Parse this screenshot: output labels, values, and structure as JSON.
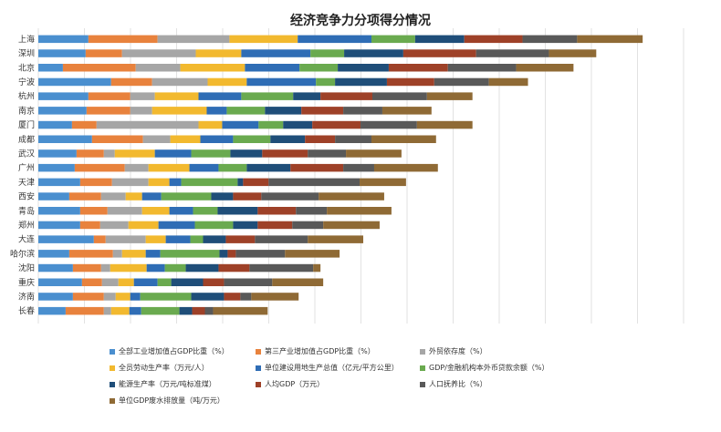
{
  "chart_data": {
    "type": "bar",
    "orientation": "horizontal",
    "stacked": true,
    "title": "经济竞争力分项得分情况",
    "grid": true,
    "legend_position": "bottom",
    "categories": [
      "上海",
      "深圳",
      "北京",
      "宁波",
      "杭州",
      "南京",
      "厦门",
      "成都",
      "武汉",
      "广州",
      "天津",
      "西安",
      "青岛",
      "郑州",
      "大连",
      "哈尔滨",
      "沈阳",
      "重庆",
      "济南",
      "长春"
    ],
    "series": [
      {
        "name": "全部工业增加值占GDP比重（%）",
        "color": "#4a8fcf",
        "values": [
          5.5,
          5.2,
          2.7,
          8.0,
          5.5,
          5.3,
          3.7,
          5.9,
          4.2,
          4.0,
          4.6,
          3.4,
          4.6,
          4.6,
          6.1,
          3.4,
          3.8,
          4.8,
          3.8,
          3.0
        ]
      },
      {
        "name": "第三产业增加值占GDP比重（%）",
        "color": "#e8823d",
        "values": [
          7.6,
          4.0,
          8.0,
          4.5,
          4.6,
          4.8,
          2.7,
          5.6,
          3.0,
          5.5,
          3.5,
          3.5,
          3.0,
          2.2,
          1.3,
          4.8,
          3.1,
          2.2,
          3.4,
          4.2
        ]
      },
      {
        "name": "外贸依存度（%）",
        "color": "#a6a6a6",
        "values": [
          7.9,
          8.1,
          4.9,
          6.1,
          2.7,
          2.4,
          11.2,
          3.0,
          1.2,
          2.6,
          4.0,
          2.7,
          3.8,
          3.1,
          4.4,
          1.0,
          1.0,
          1.8,
          1.3,
          0.8
        ]
      },
      {
        "name": "全员劳动生产率（万元/人）",
        "color": "#f2b92f",
        "values": [
          7.5,
          5.0,
          7.1,
          4.3,
          4.8,
          6.0,
          2.6,
          3.3,
          4.4,
          4.5,
          2.3,
          1.8,
          3.0,
          3.3,
          2.2,
          2.6,
          4.0,
          1.7,
          1.6,
          2.0
        ]
      },
      {
        "name": "单位建设用地生产总值（亿元/平方公里）",
        "color": "#2f6db5",
        "values": [
          8.1,
          7.6,
          6.0,
          7.6,
          4.7,
          2.2,
          4.0,
          3.6,
          4.0,
          3.2,
          1.3,
          2.1,
          2.6,
          4.0,
          2.7,
          1.6,
          2.0,
          2.6,
          1.1,
          1.3
        ]
      },
      {
        "name": "GDP/金融机构本外币贷款余额（%）",
        "color": "#6aaa4f",
        "values": [
          4.8,
          3.7,
          4.2,
          2.1,
          5.7,
          4.2,
          2.7,
          4.1,
          4.3,
          3.1,
          6.2,
          5.5,
          2.7,
          4.2,
          1.4,
          6.5,
          2.3,
          1.5,
          5.6,
          4.2
        ]
      },
      {
        "name": "能源生产率（万元/吨标准煤）",
        "color": "#1f4e79",
        "values": [
          5.4,
          6.5,
          5.6,
          5.7,
          3.0,
          4.0,
          3.2,
          3.8,
          3.5,
          4.8,
          0.6,
          2.4,
          4.4,
          2.7,
          2.5,
          0.9,
          3.6,
          3.5,
          3.6,
          1.4
        ]
      },
      {
        "name": "人均GDP（万元）",
        "color": "#9e4128",
        "values": [
          6.4,
          8.0,
          6.5,
          5.2,
          5.7,
          4.6,
          5.3,
          3.3,
          5.0,
          5.8,
          2.8,
          3.1,
          4.2,
          3.8,
          3.2,
          0.9,
          3.4,
          2.3,
          1.8,
          1.4
        ]
      },
      {
        "name": "人口抚养比（%）",
        "color": "#595959",
        "values": [
          6.0,
          8.0,
          7.5,
          6.0,
          6.0,
          4.3,
          6.2,
          4.0,
          4.2,
          3.4,
          10.0,
          6.3,
          3.4,
          3.4,
          5.8,
          5.4,
          7.0,
          5.3,
          1.2,
          0.9
        ]
      },
      {
        "name": "单位GDP废水排放量（吨/万元）",
        "color": "#8f6a35",
        "values": [
          7.2,
          5.2,
          6.3,
          4.3,
          5.0,
          5.4,
          6.1,
          7.1,
          6.1,
          7.0,
          5.1,
          7.2,
          7.1,
          6.2,
          6.1,
          6.0,
          0.8,
          5.6,
          5.2,
          6.0
        ]
      }
    ],
    "xlim": [
      0,
      72.5
    ]
  }
}
